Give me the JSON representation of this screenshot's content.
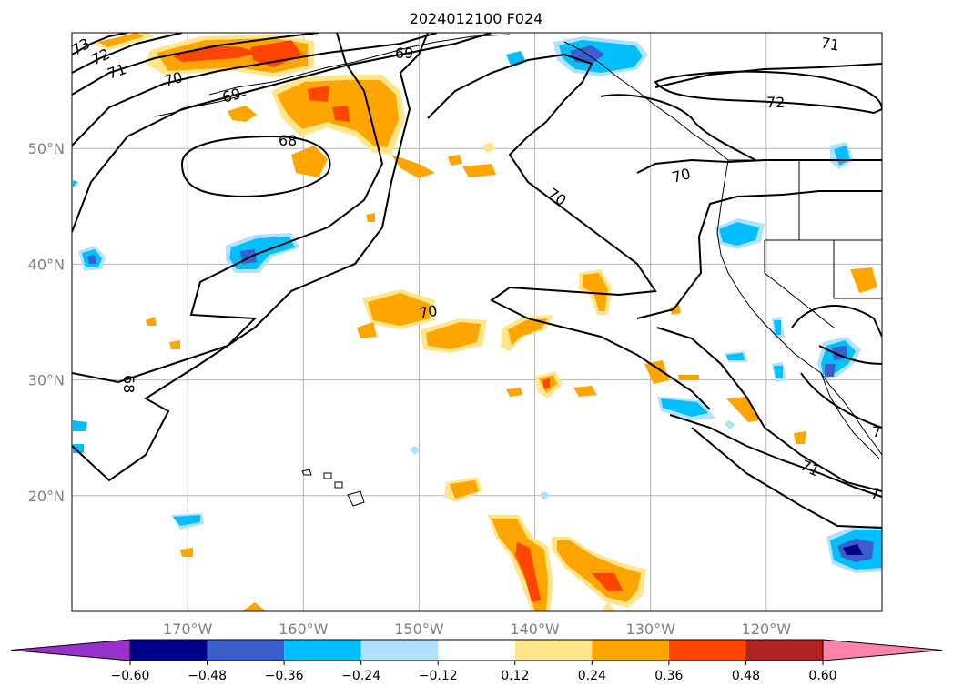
{
  "title": "2024012100 F024",
  "map": {
    "projection": "plate-carree",
    "lon_range": [
      -180,
      -110
    ],
    "lat_range": [
      10,
      60
    ],
    "gridlines": true,
    "lon_ticks": [
      {
        "value": -170,
        "label": "170°W"
      },
      {
        "value": -160,
        "label": "160°W"
      },
      {
        "value": -150,
        "label": "150°W"
      },
      {
        "value": -140,
        "label": "140°W"
      },
      {
        "value": -130,
        "label": "130°W"
      },
      {
        "value": -120,
        "label": "120°W"
      }
    ],
    "lat_ticks": [
      {
        "value": 50,
        "label": "50°N"
      },
      {
        "value": 40,
        "label": "40°N"
      },
      {
        "value": 30,
        "label": "30°N"
      },
      {
        "value": 20,
        "label": "20°N"
      }
    ],
    "contour_labels": [
      "73",
      "72",
      "71",
      "70",
      "69",
      "69",
      "68",
      "70",
      "70",
      "70",
      "72",
      "71",
      "68",
      "71",
      "7",
      "7"
    ]
  },
  "colorbar": {
    "extend": "both",
    "levels": [
      -0.6,
      -0.48,
      -0.36,
      -0.24,
      -0.12,
      0.12,
      0.24,
      0.36,
      0.48,
      0.6
    ],
    "tick_labels": [
      "−0.60",
      "−0.48",
      "−0.36",
      "−0.24",
      "−0.12",
      "0.12",
      "0.24",
      "0.36",
      "0.48",
      "0.60"
    ],
    "colors": [
      "#9932cc",
      "#00008b",
      "#3a5fcd",
      "#00bfff",
      "#b0e2ff",
      "#ffffff",
      "#ffe68a",
      "#ffa500",
      "#ff4500",
      "#b22222",
      "#ff82ab"
    ]
  }
}
